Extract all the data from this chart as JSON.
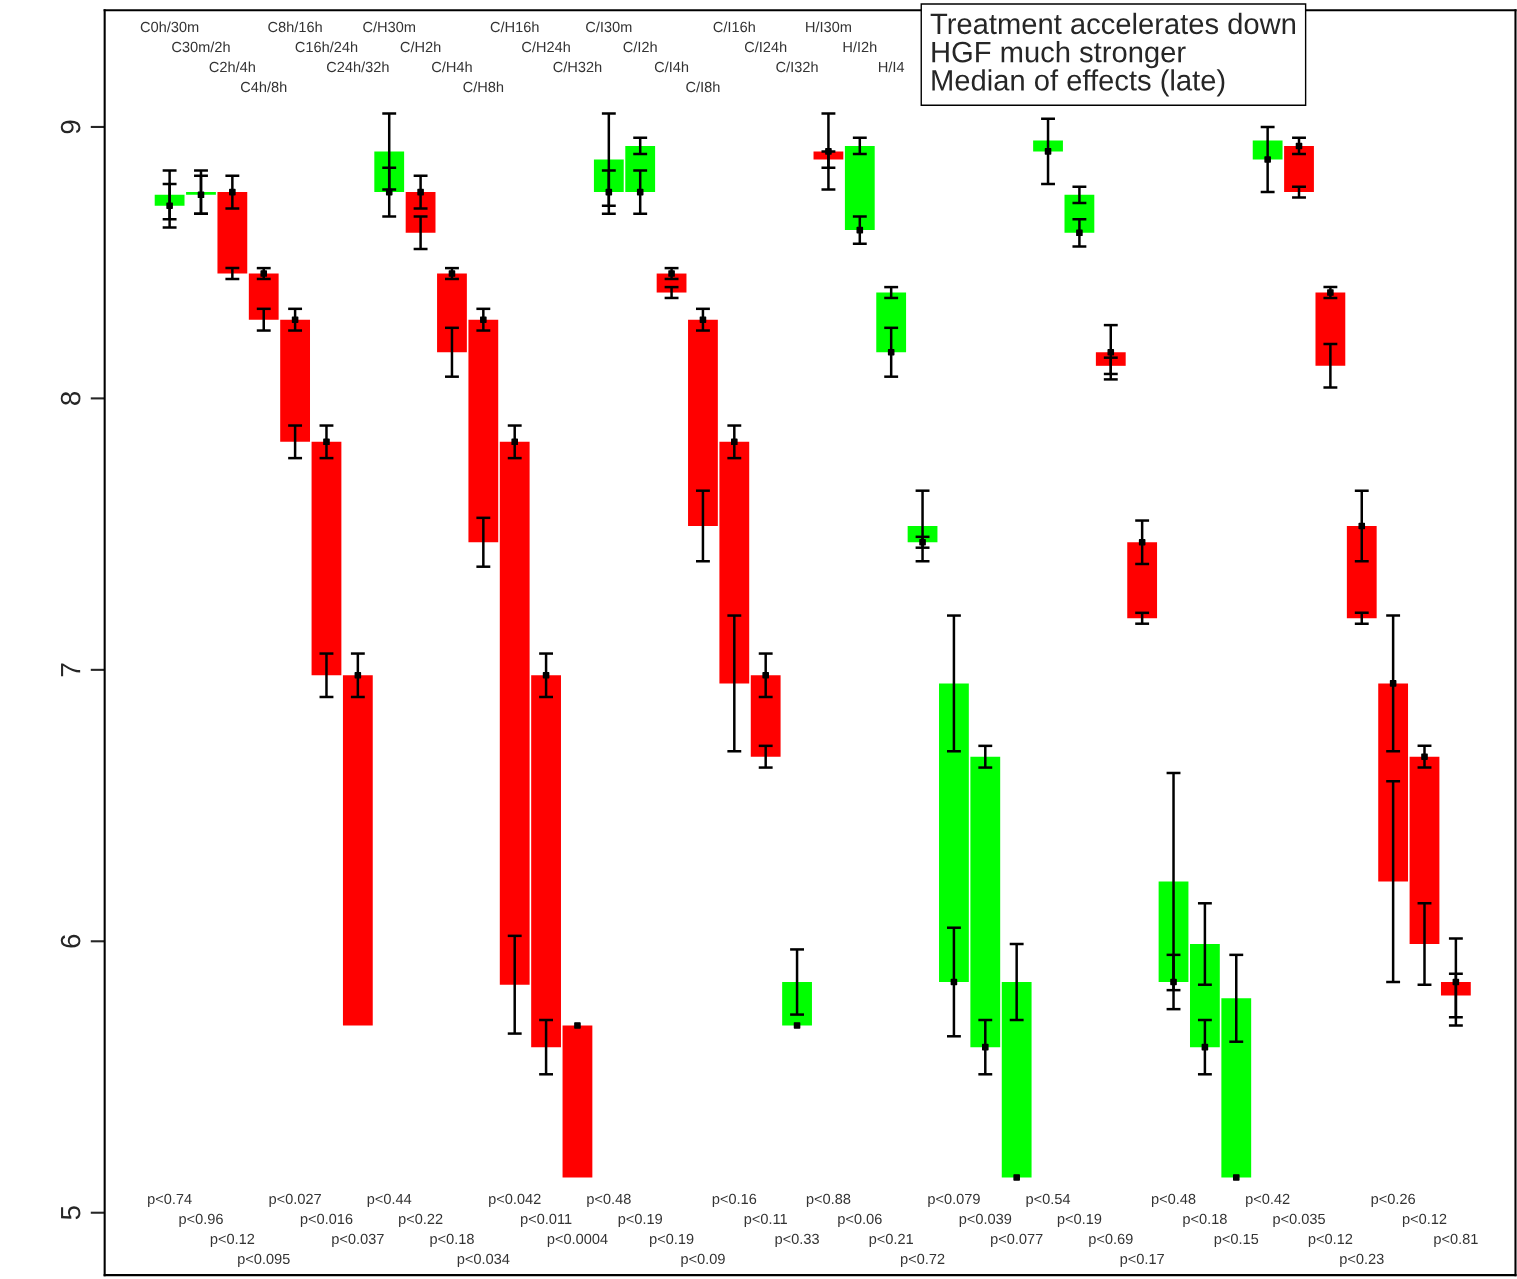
{
  "chart_data": {
    "type": "bar",
    "categories": [
      "C0h/30m",
      "C30m/2h",
      "C2h/4h",
      "C4h/8h",
      "C8h/16h",
      "C16h/24h",
      "C24h/32h",
      "C/H30m",
      "C/H2h",
      "C/H4h",
      "C/H8h",
      "C/H16h",
      "C/H24h",
      "C/H32h",
      "C/I30m",
      "C/I2h",
      "C/I4h",
      "C/I8h",
      "C/I16h",
      "C/I24h",
      "C/I32h",
      "H/I30m",
      "H/I2h",
      "H/I4",
      null,
      null,
      null,
      null,
      null,
      null,
      null,
      null,
      null,
      null,
      null,
      null,
      null,
      null,
      null,
      null,
      null,
      null
    ],
    "base": [
      8.71,
      8.75,
      8.76,
      8.46,
      8.29,
      7.84,
      6.98,
      8.76,
      8.76,
      8.46,
      8.29,
      7.84,
      6.98,
      5.69,
      8.76,
      8.76,
      8.46,
      8.29,
      7.84,
      6.98,
      5.69,
      8.91,
      8.62,
      8.17,
      7.47,
      5.85,
      5.61,
      5.13,
      8.91,
      8.61,
      8.17,
      7.47,
      5.85,
      5.61,
      5.13,
      8.88,
      8.93,
      8.39,
      7.53,
      6.95,
      6.68,
      5.85
    ],
    "values": [
      0.04,
      0.01,
      -0.3,
      -0.17,
      -0.45,
      -0.86,
      -1.29,
      0.15,
      -0.15,
      -0.29,
      -0.82,
      -2.0,
      -1.37,
      -0.56,
      0.12,
      0.17,
      -0.07,
      -0.76,
      -0.89,
      -0.3,
      0.16,
      -0.03,
      0.31,
      0.22,
      0.06,
      1.1,
      1.07,
      0.72,
      0.04,
      0.14,
      -0.05,
      -0.28,
      0.37,
      0.38,
      0.66,
      0.07,
      -0.17,
      -0.27,
      -0.34,
      -0.73,
      -0.69,
      -0.05
    ],
    "colors": [
      "#00ff00",
      "#00ff00",
      "#ff0000",
      "#ff0000",
      "#ff0000",
      "#ff0000",
      "#ff0000",
      "#00ff00",
      "#ff0000",
      "#ff0000",
      "#ff0000",
      "#ff0000",
      "#ff0000",
      "#ff0000",
      "#00ff00",
      "#00ff00",
      "#ff0000",
      "#ff0000",
      "#ff0000",
      "#ff0000",
      "#00ff00",
      "#ff0000",
      "#00ff00",
      "#00ff00",
      "#00ff00",
      "#00ff00",
      "#00ff00",
      "#00ff00",
      "#00ff00",
      "#00ff00",
      "#ff0000",
      "#ff0000",
      "#00ff00",
      "#00ff00",
      "#00ff00",
      "#00ff00",
      "#ff0000",
      "#ff0000",
      "#ff0000",
      "#ff0000",
      "#ff0000",
      "#ff0000"
    ],
    "errors": [
      0.09,
      0.08,
      0.02,
      0.04,
      0.06,
      0.08,
      null,
      0.14,
      0.06,
      0.09,
      0.09,
      0.18,
      0.1,
      null,
      0.17,
      0.03,
      0.02,
      0.13,
      0.25,
      0.04,
      0.12,
      0.03,
      0.03,
      0.02,
      0.13,
      0.25,
      0.04,
      0.14,
      null,
      0.03,
      0.03,
      0.02,
      0.4,
      0.15,
      0.16,
      null,
      0.02,
      0.08,
      0.02,
      0.37,
      0.15,
      0.08
    ],
    "series": [
      {
        "type": "scatter",
        "marker": "square",
        "color": "#000000",
        "values": [
          8.71,
          8.75,
          8.76,
          8.46,
          8.29,
          7.84,
          6.98,
          8.76,
          8.76,
          8.46,
          8.29,
          7.84,
          6.98,
          5.69,
          8.76,
          8.76,
          8.46,
          8.29,
          7.84,
          6.98,
          5.69,
          8.91,
          8.62,
          8.17,
          7.47,
          5.85,
          5.61,
          5.13,
          8.91,
          8.61,
          8.17,
          7.47,
          5.85,
          5.61,
          5.13,
          8.88,
          8.93,
          8.39,
          7.53,
          6.95,
          6.68,
          5.85
        ],
        "errors": [
          0.08,
          0.07,
          0.06,
          0.02,
          0.04,
          0.06,
          0.08,
          0.09,
          0.06,
          0.02,
          0.04,
          0.06,
          0.08,
          null,
          0.08,
          0.08,
          0.02,
          0.04,
          0.06,
          0.08,
          null,
          0.14,
          0.05,
          0.09,
          0.02,
          0.2,
          0.1,
          null,
          0.12,
          0.05,
          0.1,
          0.08,
          0.1,
          0.1,
          null,
          0.12,
          0.03,
          0.02,
          0.13,
          0.25,
          0.04,
          0.16
        ]
      }
    ],
    "ylim": [
      4.77,
      9.43
    ],
    "yticks": [
      5,
      6,
      7,
      8,
      9
    ],
    "grid": false,
    "annotations": [
      "Treatment accelerates down",
      "HGF much stronger",
      "Median of effects (late)",
      "p<0.74",
      "p<0.96",
      "p<0.12",
      "p<0.095",
      "p<0.027",
      "p<0.016",
      "p<0.037",
      "p<0.44",
      "p<0.22",
      "p<0.18",
      "p<0.034",
      "p<0.042",
      "p<0.011",
      "p<0.0004",
      "p<0.48",
      "p<0.19",
      "p<0.19",
      "p<0.09",
      "p<0.16",
      "p<0.11",
      "p<0.33",
      "p<0.88",
      "p<0.06",
      "p<0.21",
      "p<0.72",
      "p<0.079",
      "p<0.039",
      "p<0.077",
      "p<0.54",
      "p<0.19",
      "p<0.69",
      "p<0.17",
      "p<0.48",
      "p<0.18",
      "p<0.15",
      "p<0.42",
      "p<0.035",
      "p<0.12",
      "p<0.23",
      "p<0.26",
      "p<0.12",
      "p<0.81"
    ]
  }
}
